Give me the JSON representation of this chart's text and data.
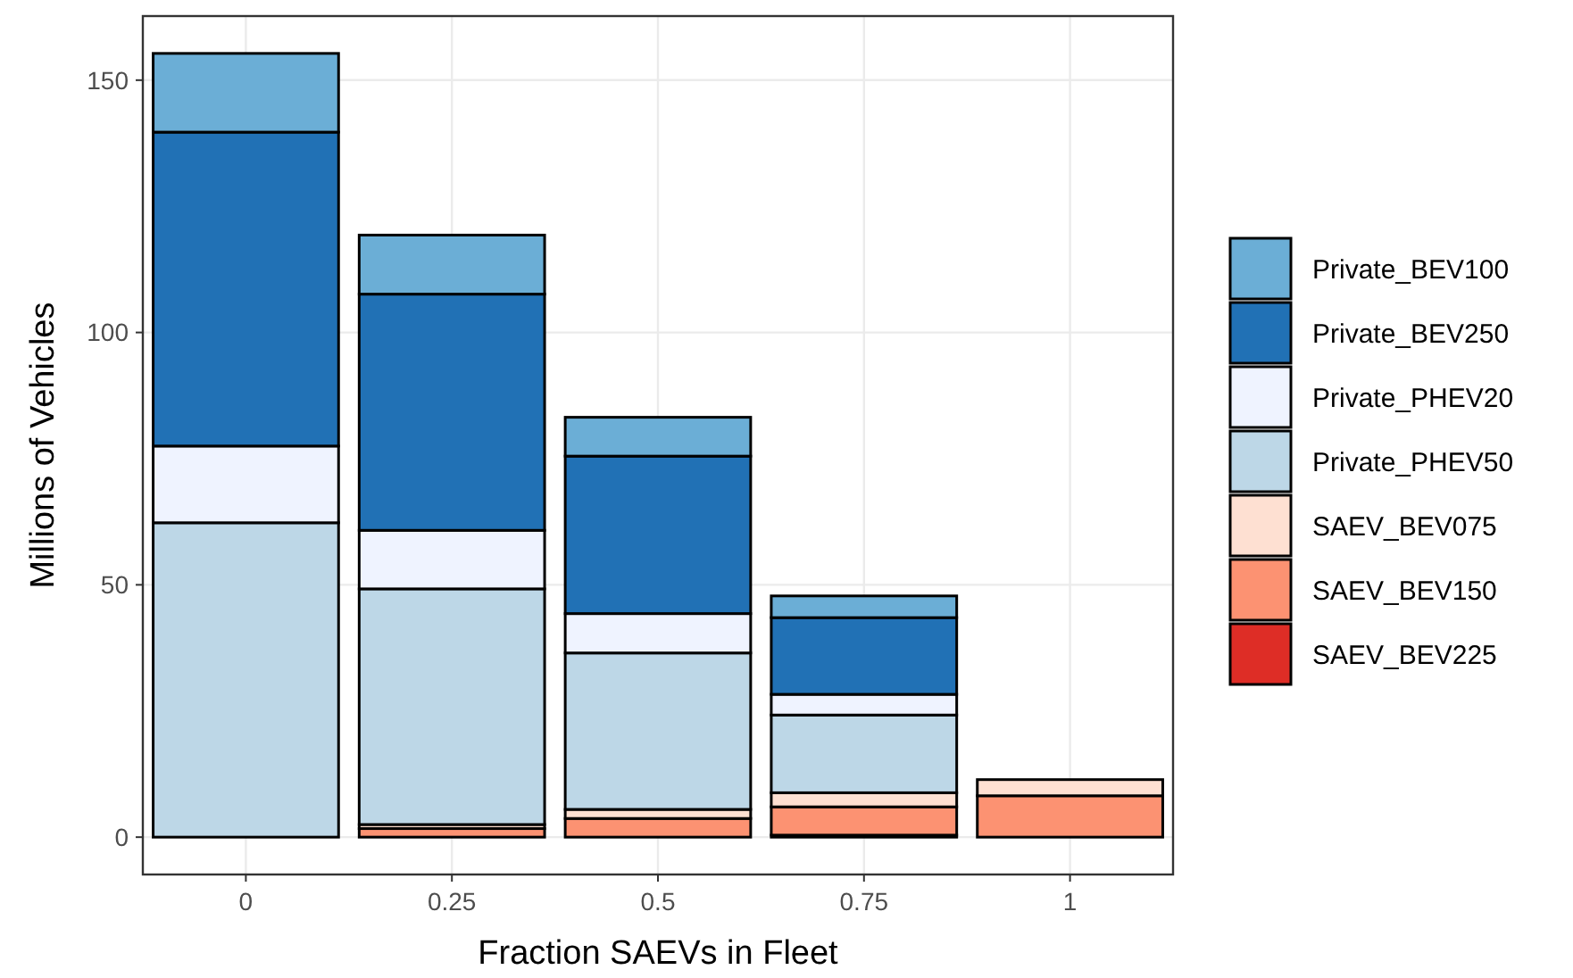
{
  "chart_data": {
    "type": "bar",
    "stacked": true,
    "xlabel": "Fraction SAEVs in Fleet",
    "ylabel": "Millions of Vehicles",
    "categories": [
      "0",
      "0.25",
      "0.5",
      "0.75",
      "1"
    ],
    "ylim": [
      -7.4,
      162.7
    ],
    "yticks": [
      0,
      50,
      100,
      150
    ],
    "grid": true,
    "legend": "right",
    "series": [
      {
        "name": "SAEV_BEV225",
        "color": "#de2d26",
        "values": [
          0,
          null,
          null,
          0.4,
          null
        ]
      },
      {
        "name": "SAEV_BEV150",
        "color": "#fc9272",
        "values": [
          0,
          1.7,
          3.7,
          5.6,
          8.2
        ]
      },
      {
        "name": "SAEV_BEV075",
        "color": "#fee0d2",
        "values": [
          0,
          0.8,
          1.8,
          2.8,
          3.2
        ]
      },
      {
        "name": "Private_PHEV50",
        "color": "#bdd7e7",
        "values": [
          62.3,
          46.7,
          31.0,
          15.4,
          0
        ]
      },
      {
        "name": "Private_PHEV20",
        "color": "#eff3ff",
        "values": [
          15.2,
          11.6,
          7.8,
          4.1,
          0
        ]
      },
      {
        "name": "Private_BEV250",
        "color": "#2171b5",
        "values": [
          62.2,
          46.8,
          31.2,
          15.2,
          0
        ]
      },
      {
        "name": "Private_BEV100",
        "color": "#6baed6",
        "values": [
          15.6,
          11.7,
          7.7,
          4.3,
          0
        ]
      }
    ]
  }
}
